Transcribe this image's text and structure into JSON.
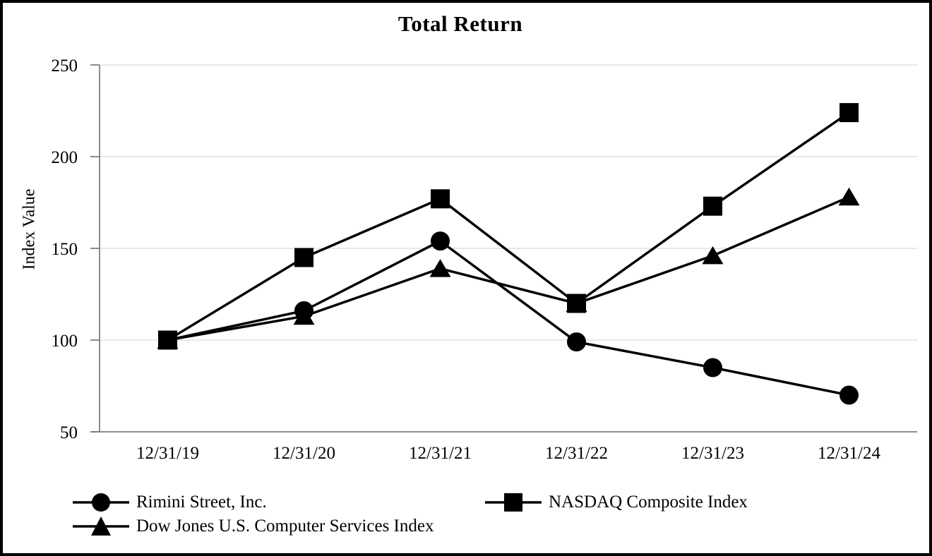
{
  "chart_data": {
    "type": "line",
    "title": "Total Return",
    "ylabel": "Index Value",
    "xlabel": "",
    "categories": [
      "12/31/19",
      "12/31/20",
      "12/31/21",
      "12/31/22",
      "12/31/23",
      "12/31/24"
    ],
    "series": [
      {
        "name": "Rimini Street, Inc.",
        "marker": "circle",
        "values": [
          100,
          116,
          154,
          99,
          85,
          70
        ]
      },
      {
        "name": "NASDAQ Composite Index",
        "marker": "square",
        "values": [
          100,
          145,
          177,
          120,
          173,
          224
        ]
      },
      {
        "name": "Dow Jones U.S. Computer Services Index",
        "marker": "triangle",
        "values": [
          100,
          113,
          139,
          120,
          146,
          178
        ]
      }
    ],
    "ylim": [
      50,
      250
    ],
    "y_ticks": [
      50,
      100,
      150,
      200,
      250
    ],
    "grid": "horizontal",
    "legend_position": "bottom",
    "line_color": "#000000",
    "marker_color": "#000000",
    "gridline_color": "#d9d9d9",
    "axis_color": "#7f7f7f",
    "z_order": [
      2,
      0,
      1
    ]
  }
}
